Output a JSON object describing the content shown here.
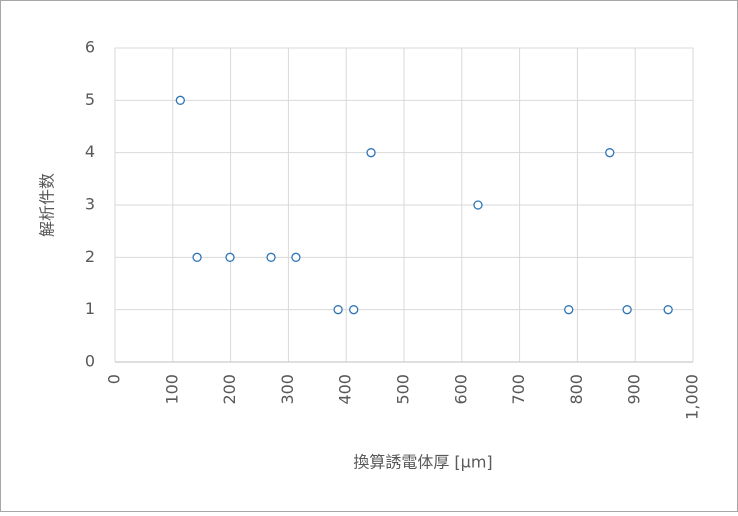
{
  "chart_data": {
    "type": "scatter",
    "x_label": "換算誘電体厚 [µm]",
    "y_label": "解析件数",
    "x": [
      113,
      142,
      199,
      270,
      313,
      386,
      413,
      443,
      628,
      785,
      856,
      886,
      957
    ],
    "values": [
      5,
      2,
      2,
      2,
      2,
      1,
      1,
      4,
      3,
      1,
      4,
      1,
      1
    ],
    "color": "#2e75b6",
    "xlim": [
      0,
      1000
    ],
    "xticks": [
      0,
      100,
      200,
      300,
      400,
      500,
      600,
      700,
      800,
      900,
      {
        "value": 1000,
        "label": "1,000"
      }
    ],
    "ylim": [
      0,
      6
    ],
    "yticks": [
      0,
      1,
      2,
      3,
      4,
      5,
      6
    ],
    "grid": true
  }
}
